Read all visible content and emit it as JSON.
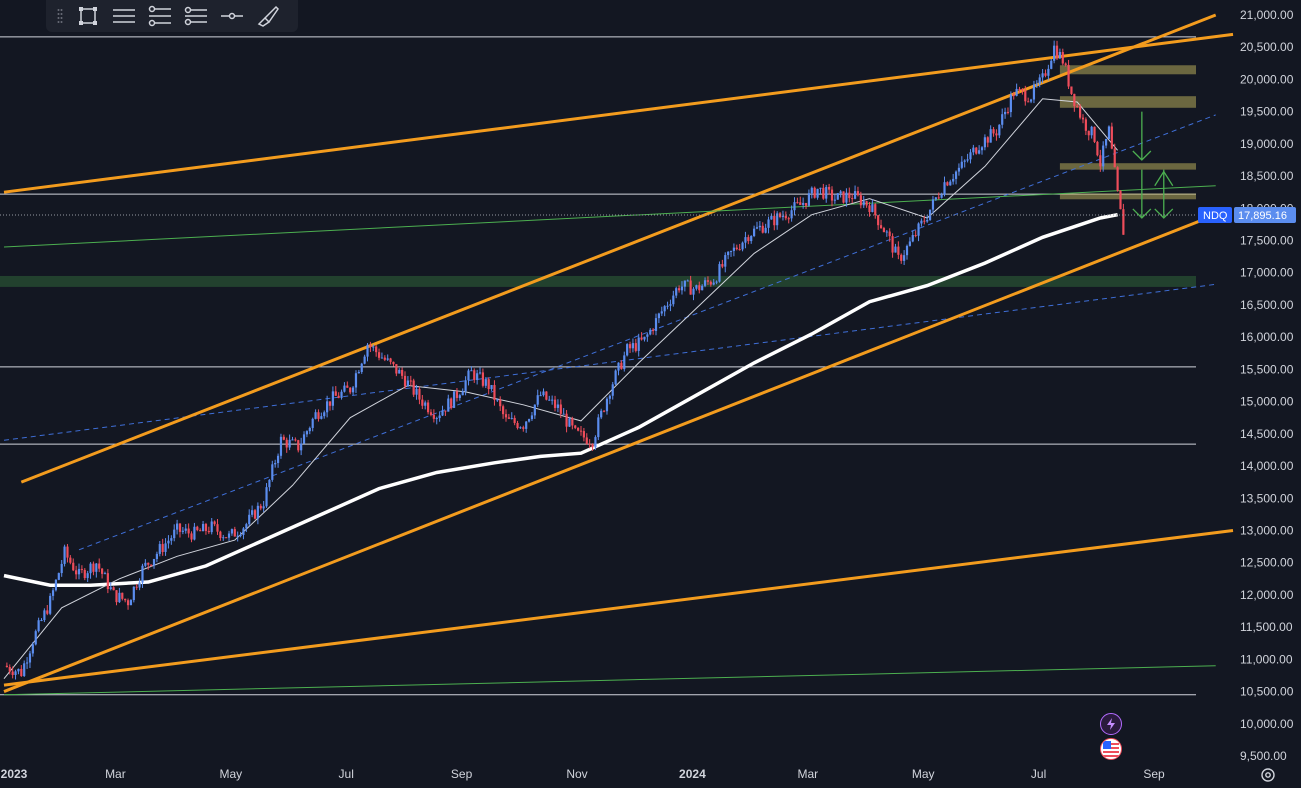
{
  "toolbar": {
    "tools": [
      {
        "name": "grip-icon"
      },
      {
        "name": "rectangle-tool-icon"
      },
      {
        "name": "lines-tool-icon"
      },
      {
        "name": "parallel-channel-tool-icon"
      },
      {
        "name": "ray-tool-icon"
      },
      {
        "name": "horizontal-line-tool-icon"
      },
      {
        "name": "brush-tool-icon"
      }
    ]
  },
  "chart_data": {
    "type": "candlestick",
    "symbol": "NDQ",
    "last_price": 17895.16,
    "last_price_label": "17,895.16",
    "ylim": [
      9500,
      21000
    ],
    "y_ticks": [
      "21,000.00",
      "20,500.00",
      "20,000.00",
      "19,500.00",
      "19,000.00",
      "18,500.00",
      "18,000.00",
      "17,500.00",
      "17,000.00",
      "16,500.00",
      "16,000.00",
      "15,500.00",
      "15,000.00",
      "14,500.00",
      "14,000.00",
      "13,500.00",
      "13,000.00",
      "12,500.00",
      "12,000.00",
      "11,500.00",
      "11,000.00",
      "10,500.00",
      "10,000.00",
      "9,500.00"
    ],
    "x_ticks": [
      {
        "label": "2023",
        "month": 0,
        "year": true
      },
      {
        "label": "Mar",
        "month": 2
      },
      {
        "label": "May",
        "month": 4
      },
      {
        "label": "Jul",
        "month": 6
      },
      {
        "label": "Sep",
        "month": 8
      },
      {
        "label": "Nov",
        "month": 10
      },
      {
        "label": "2024",
        "month": 12,
        "year": true
      },
      {
        "label": "Mar",
        "month": 14
      },
      {
        "label": "May",
        "month": 16
      },
      {
        "label": "Jul",
        "month": 18
      },
      {
        "label": "Sep",
        "month": 20
      }
    ],
    "price_path": [
      [
        0,
        10900
      ],
      [
        0.3,
        10800
      ],
      [
        0.5,
        11300
      ],
      [
        0.8,
        11900
      ],
      [
        1.05,
        12650
      ],
      [
        1.3,
        12300
      ],
      [
        1.6,
        12500
      ],
      [
        1.9,
        12000
      ],
      [
        2.15,
        11900
      ],
      [
        2.4,
        12400
      ],
      [
        2.7,
        12700
      ],
      [
        3.0,
        13000
      ],
      [
        3.3,
        12950
      ],
      [
        3.6,
        13050
      ],
      [
        3.9,
        12900
      ],
      [
        4.2,
        13100
      ],
      [
        4.5,
        13450
      ],
      [
        4.8,
        14400
      ],
      [
        5.1,
        14300
      ],
      [
        5.4,
        14800
      ],
      [
        5.7,
        15050
      ],
      [
        6.0,
        15200
      ],
      [
        6.3,
        15900
      ],
      [
        6.6,
        15650
      ],
      [
        6.9,
        15400
      ],
      [
        7.2,
        15050
      ],
      [
        7.5,
        14800
      ],
      [
        7.8,
        15050
      ],
      [
        8.1,
        15450
      ],
      [
        8.4,
        15250
      ],
      [
        8.7,
        14700
      ],
      [
        9.0,
        14650
      ],
      [
        9.3,
        15100
      ],
      [
        9.6,
        14900
      ],
      [
        9.9,
        14500
      ],
      [
        10.2,
        14400
      ],
      [
        10.5,
        15200
      ],
      [
        10.8,
        15800
      ],
      [
        11.1,
        15950
      ],
      [
        11.4,
        16400
      ],
      [
        11.7,
        16800
      ],
      [
        12.0,
        16750
      ],
      [
        12.3,
        16900
      ],
      [
        12.6,
        17300
      ],
      [
        12.9,
        17600
      ],
      [
        13.2,
        17750
      ],
      [
        13.5,
        17900
      ],
      [
        13.8,
        18050
      ],
      [
        14.1,
        18300
      ],
      [
        14.4,
        18150
      ],
      [
        14.7,
        18200
      ],
      [
        15.0,
        18050
      ],
      [
        15.3,
        17600
      ],
      [
        15.5,
        17200
      ],
      [
        15.7,
        17450
      ],
      [
        16.0,
        17900
      ],
      [
        16.3,
        18400
      ],
      [
        16.6,
        18650
      ],
      [
        16.9,
        19000
      ],
      [
        17.2,
        19200
      ],
      [
        17.5,
        19800
      ],
      [
        17.8,
        19750
      ],
      [
        18.0,
        20000
      ],
      [
        18.2,
        20500
      ],
      [
        18.35,
        20300
      ],
      [
        18.5,
        19800
      ],
      [
        18.7,
        19350
      ],
      [
        18.9,
        19100
      ],
      [
        19.0,
        18700
      ],
      [
        19.15,
        19200
      ],
      [
        19.3,
        18200
      ],
      [
        19.4,
        17650
      ]
    ],
    "ma_short": [
      [
        0,
        10700
      ],
      [
        1,
        11800
      ],
      [
        2,
        12250
      ],
      [
        3,
        12600
      ],
      [
        4,
        12850
      ],
      [
        5,
        13700
      ],
      [
        6,
        14750
      ],
      [
        7,
        15250
      ],
      [
        8,
        15150
      ],
      [
        9,
        14950
      ],
      [
        10,
        14700
      ],
      [
        11,
        15600
      ],
      [
        12,
        16450
      ],
      [
        13,
        17300
      ],
      [
        14,
        17900
      ],
      [
        15,
        18150
      ],
      [
        16,
        17850
      ],
      [
        17,
        18650
      ],
      [
        18,
        19700
      ],
      [
        18.6,
        19650
      ],
      [
        19.3,
        18900
      ]
    ],
    "ma_long": [
      [
        0,
        12300
      ],
      [
        0.8,
        12150
      ],
      [
        1.5,
        12150
      ],
      [
        2.5,
        12200
      ],
      [
        3.5,
        12450
      ],
      [
        4.5,
        12850
      ],
      [
        5.5,
        13250
      ],
      [
        6.5,
        13650
      ],
      [
        7.5,
        13900
      ],
      [
        8.5,
        14050
      ],
      [
        9.3,
        14150
      ],
      [
        10,
        14200
      ],
      [
        11,
        14600
      ],
      [
        12,
        15100
      ],
      [
        13,
        15600
      ],
      [
        14,
        16050
      ],
      [
        15,
        16550
      ],
      [
        16,
        16800
      ],
      [
        17,
        17150
      ],
      [
        18,
        17550
      ],
      [
        19,
        17850
      ],
      [
        19.3,
        17900
      ]
    ],
    "horizontal_levels": [
      20660,
      18220,
      15540,
      14340,
      10450
    ],
    "zones": [
      {
        "from": 20080,
        "to": 20220,
        "color": "#b5a95a"
      },
      {
        "from": 19560,
        "to": 19740,
        "color": "#b5a95a"
      },
      {
        "from": 18600,
        "to": 18700,
        "color": "#b5a95a"
      },
      {
        "from": 18140,
        "to": 18230,
        "color": "#b5a95a"
      },
      {
        "from": 16780,
        "to": 16950,
        "color": "#4caf50"
      }
    ],
    "trendlines": [
      {
        "color": "#f39c1e",
        "x1": 0,
        "y1": 10500,
        "x2": 21.0,
        "y2": 17900
      },
      {
        "color": "#f39c1e",
        "x1": 0.3,
        "y1": 13750,
        "x2": 21.0,
        "y2": 21000
      },
      {
        "color": "#f39c1e",
        "x1": 0,
        "y1": 18250,
        "x2": 21.3,
        "y2": 20700
      },
      {
        "color": "#f39c1e",
        "x1": 0,
        "y1": 10600,
        "x2": 21.3,
        "y2": 13000
      },
      {
        "color": "#4caf50",
        "x1": 0,
        "y1": 17400,
        "x2": 21.0,
        "y2": 18350
      },
      {
        "color": "#4caf50",
        "x1": 0,
        "y1": 10450,
        "x2": 21.0,
        "y2": 10900
      }
    ],
    "dashed_lines": [
      {
        "x1": 0,
        "y1": 14400,
        "x2": 21.0,
        "y2": 16820
      },
      {
        "x1": 1.3,
        "y1": 12700,
        "x2": 21.0,
        "y2": 19450
      }
    ],
    "colors": {
      "up": "#5b8def",
      "down": "#ef4d5b",
      "background": "#131722",
      "grid": "#2a2e39",
      "ma_short": "#d1d4dc",
      "ma_long": "#ffffff",
      "price_line": "#5b8def"
    }
  }
}
